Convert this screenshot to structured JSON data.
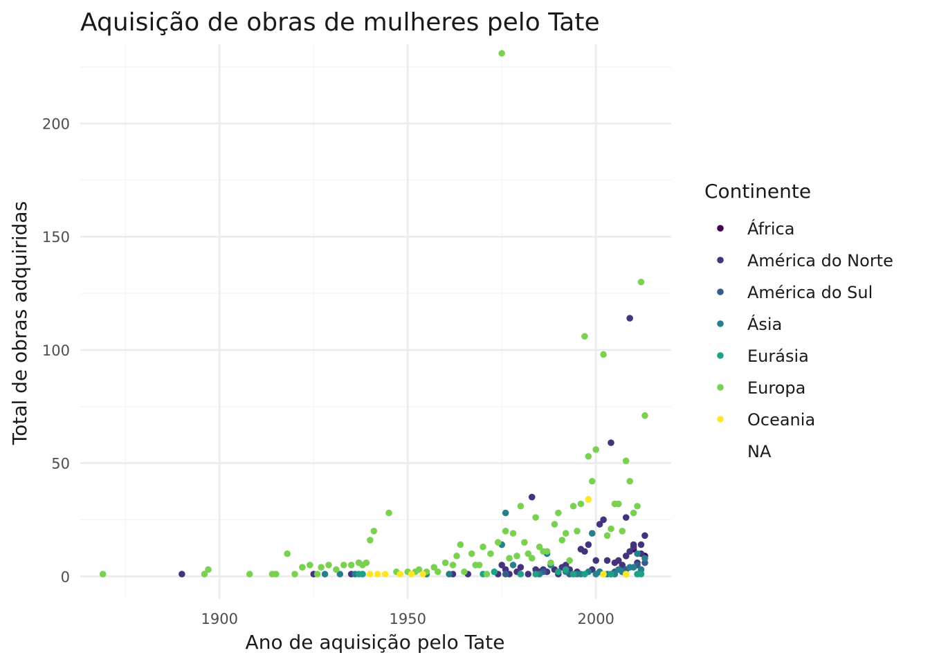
{
  "chart_data": {
    "type": "scatter",
    "title": "Aquisição de obras de mulheres pelo Tate",
    "xlabel": "Ano de aquisição pelo Tate",
    "ylabel": "Total de obras adquiridas",
    "xlim": [
      1863,
      2020
    ],
    "ylim": [
      -10,
      235
    ],
    "x_ticks": [
      1900,
      1950,
      2000
    ],
    "y_ticks": [
      0,
      50,
      100,
      150,
      200
    ],
    "grid": true,
    "legend": {
      "title": "Continente",
      "position": "right",
      "entries": [
        "África",
        "América do Norte",
        "América do Sul",
        "Ásia",
        "Eurásia",
        "Europa",
        "Oceania",
        "NA"
      ]
    },
    "colors": {
      "África": "#440154",
      "América do Norte": "#46337e",
      "América do Sul": "#365c8d",
      "Ásia": "#277f8e",
      "Eurásia": "#1fa187",
      "Europa": "#7ad151",
      "Oceania": "#fde725",
      "NA": "#ffffff"
    },
    "series": [
      {
        "name": "África",
        "points": [
          [
            2004,
            1
          ],
          [
            2007,
            2
          ],
          [
            2010,
            12
          ],
          [
            2013,
            9
          ]
        ]
      },
      {
        "name": "América do Norte",
        "points": [
          [
            1890,
            1
          ],
          [
            1925,
            1
          ],
          [
            1935,
            1
          ],
          [
            1962,
            1
          ],
          [
            1966,
            1
          ],
          [
            1974,
            1
          ],
          [
            1975,
            5
          ],
          [
            1976,
            3
          ],
          [
            1977,
            1
          ],
          [
            1979,
            2
          ],
          [
            1980,
            4
          ],
          [
            1982,
            1
          ],
          [
            1983,
            35
          ],
          [
            1984,
            3
          ],
          [
            1985,
            2
          ],
          [
            1986,
            3
          ],
          [
            1987,
            2
          ],
          [
            1989,
            3
          ],
          [
            1990,
            1
          ],
          [
            1991,
            4
          ],
          [
            1992,
            5
          ],
          [
            1993,
            3
          ],
          [
            1995,
            2
          ],
          [
            1996,
            12
          ],
          [
            1997,
            11
          ],
          [
            1998,
            14
          ],
          [
            1999,
            3
          ],
          [
            2000,
            7
          ],
          [
            2001,
            23
          ],
          [
            2002,
            25
          ],
          [
            2003,
            7
          ],
          [
            2004,
            59
          ],
          [
            2005,
            6
          ],
          [
            2006,
            7
          ],
          [
            2007,
            5
          ],
          [
            2008,
            9
          ],
          [
            2008,
            26
          ],
          [
            2009,
            114
          ],
          [
            2009,
            11
          ],
          [
            2010,
            14
          ],
          [
            2010,
            13
          ],
          [
            2011,
            6
          ],
          [
            2012,
            14
          ],
          [
            2013,
            18
          ],
          [
            2012,
            10
          ]
        ]
      },
      {
        "name": "América do Sul",
        "points": [
          [
            1976,
            1
          ],
          [
            1986,
            2
          ],
          [
            1993,
            1
          ],
          [
            2001,
            2
          ],
          [
            2005,
            2
          ],
          [
            2008,
            3
          ],
          [
            2011,
            5
          ],
          [
            2013,
            6
          ]
        ]
      },
      {
        "name": "Ásia",
        "points": [
          [
            1928,
            1
          ],
          [
            1932,
            1
          ],
          [
            1936,
            1
          ],
          [
            1938,
            1
          ],
          [
            1955,
            1
          ],
          [
            1961,
            1
          ],
          [
            1975,
            14
          ],
          [
            1976,
            28
          ],
          [
            1978,
            5
          ],
          [
            1985,
            1
          ],
          [
            1987,
            10
          ],
          [
            1988,
            5
          ],
          [
            1992,
            2
          ],
          [
            1994,
            1
          ],
          [
            1995,
            1
          ],
          [
            1996,
            1
          ],
          [
            1998,
            2
          ],
          [
            1999,
            19
          ],
          [
            2000,
            1
          ],
          [
            2001,
            2
          ],
          [
            2003,
            1
          ],
          [
            2005,
            1
          ],
          [
            2006,
            3
          ],
          [
            2007,
            2
          ],
          [
            2009,
            4
          ],
          [
            2010,
            4
          ],
          [
            2011,
            10
          ],
          [
            2012,
            3
          ],
          [
            2013,
            8
          ]
        ]
      },
      {
        "name": "Eurásia",
        "points": [
          [
            1937,
            1
          ],
          [
            1938,
            1
          ],
          [
            1970,
            1
          ],
          [
            1973,
            2
          ],
          [
            1980,
            1
          ],
          [
            1984,
            1
          ],
          [
            1990,
            2
          ],
          [
            1992,
            3
          ],
          [
            1994,
            1
          ],
          [
            1997,
            1
          ],
          [
            2002,
            1
          ],
          [
            2004,
            1
          ],
          [
            2008,
            1
          ],
          [
            2011,
            1
          ],
          [
            2012,
            1
          ]
        ]
      },
      {
        "name": "Europa",
        "points": [
          [
            1869,
            1
          ],
          [
            1896,
            1
          ],
          [
            1897,
            3
          ],
          [
            1908,
            1
          ],
          [
            1914,
            1
          ],
          [
            1915,
            1
          ],
          [
            1918,
            10
          ],
          [
            1920,
            1
          ],
          [
            1922,
            4
          ],
          [
            1924,
            5
          ],
          [
            1926,
            1
          ],
          [
            1927,
            4
          ],
          [
            1929,
            5
          ],
          [
            1931,
            3
          ],
          [
            1933,
            5
          ],
          [
            1935,
            5
          ],
          [
            1937,
            6
          ],
          [
            1938,
            5
          ],
          [
            1939,
            6
          ],
          [
            1940,
            16
          ],
          [
            1941,
            20
          ],
          [
            1945,
            28
          ],
          [
            1947,
            2
          ],
          [
            1950,
            2
          ],
          [
            1952,
            2
          ],
          [
            1953,
            3
          ],
          [
            1955,
            2
          ],
          [
            1957,
            4
          ],
          [
            1958,
            2
          ],
          [
            1960,
            6
          ],
          [
            1962,
            5
          ],
          [
            1963,
            9
          ],
          [
            1964,
            14
          ],
          [
            1965,
            2
          ],
          [
            1967,
            10
          ],
          [
            1968,
            5
          ],
          [
            1969,
            5
          ],
          [
            1970,
            13
          ],
          [
            1971,
            1
          ],
          [
            1972,
            10
          ],
          [
            1974,
            15
          ],
          [
            1975,
            231
          ],
          [
            1976,
            20
          ],
          [
            1977,
            8
          ],
          [
            1978,
            19
          ],
          [
            1979,
            9
          ],
          [
            1980,
            31
          ],
          [
            1981,
            15
          ],
          [
            1982,
            10
          ],
          [
            1983,
            8
          ],
          [
            1984,
            26
          ],
          [
            1985,
            13
          ],
          [
            1986,
            11
          ],
          [
            1987,
            11
          ],
          [
            1988,
            6
          ],
          [
            1989,
            23
          ],
          [
            1990,
            28
          ],
          [
            1991,
            16
          ],
          [
            1992,
            19
          ],
          [
            1993,
            7
          ],
          [
            1994,
            31
          ],
          [
            1995,
            20
          ],
          [
            1996,
            32
          ],
          [
            1997,
            106
          ],
          [
            1998,
            53
          ],
          [
            1999,
            42
          ],
          [
            2000,
            56
          ],
          [
            2002,
            98
          ],
          [
            2003,
            18
          ],
          [
            2004,
            21
          ],
          [
            2005,
            32
          ],
          [
            2006,
            32
          ],
          [
            2007,
            20
          ],
          [
            2008,
            51
          ],
          [
            2009,
            42
          ],
          [
            2010,
            28
          ],
          [
            2011,
            31
          ],
          [
            2012,
            130
          ],
          [
            2013,
            71
          ]
        ]
      },
      {
        "name": "Oceania",
        "points": [
          [
            1940,
            1
          ],
          [
            1942,
            1
          ],
          [
            1944,
            1
          ],
          [
            1948,
            1
          ],
          [
            1951,
            1
          ],
          [
            1954,
            1
          ],
          [
            1998,
            34
          ],
          [
            2002,
            1
          ],
          [
            2008,
            1
          ]
        ]
      }
    ]
  }
}
